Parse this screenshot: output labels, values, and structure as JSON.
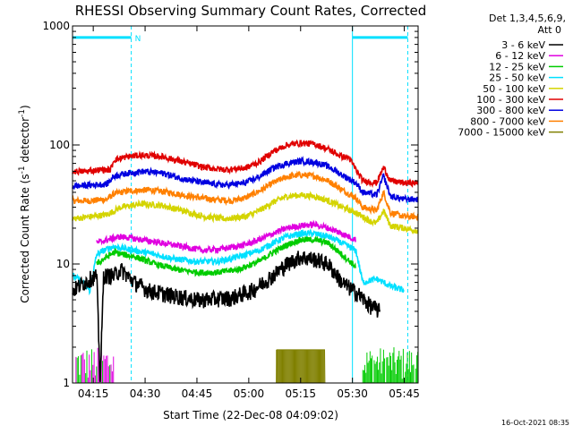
{
  "chart_data": {
    "type": "line",
    "title": "RHESSI Observing Summary Count Rates, Corrected",
    "xlabel": "Start Time (22-Dec-08 04:09:02)",
    "ylabel_main": "Corrected Count Rate (s",
    "ylabel_sup1": "-1",
    "ylabel_mid": " detector",
    "ylabel_sup2": "-1",
    "ylabel_end": ")",
    "yscale": "log",
    "ylim": [
      1,
      1000
    ],
    "xlim_minutes": [
      0,
      100
    ],
    "x_ticks": [
      {
        "label": "04:15",
        "minute": 6
      },
      {
        "label": "04:30",
        "minute": 21
      },
      {
        "label": "04:45",
        "minute": 36
      },
      {
        "label": "05:00",
        "minute": 51
      },
      {
        "label": "05:15",
        "minute": 66
      },
      {
        "label": "05:30",
        "minute": 81
      },
      {
        "label": "05:45",
        "minute": 96
      }
    ],
    "y_ticks": [
      {
        "label": "1",
        "value": 1
      },
      {
        "label": "10",
        "value": 10
      },
      {
        "label": "100",
        "value": 100
      },
      {
        "label": "1000",
        "value": 1000
      }
    ],
    "legend_header": [
      "Det 1,3,4,5,6,9,",
      "Att 0"
    ],
    "series": [
      {
        "name": "3 - 6 keV",
        "color": "#000000",
        "points": [
          [
            0,
            6
          ],
          [
            5,
            7.5
          ],
          [
            7,
            8
          ],
          [
            8,
            1
          ],
          [
            9,
            8
          ],
          [
            12,
            8
          ],
          [
            14,
            9
          ],
          [
            18,
            7
          ],
          [
            22,
            6
          ],
          [
            28,
            5.5
          ],
          [
            36,
            5
          ],
          [
            46,
            5.2
          ],
          [
            52,
            6
          ],
          [
            58,
            8
          ],
          [
            62,
            10
          ],
          [
            66,
            11.5
          ],
          [
            70,
            11
          ],
          [
            74,
            10
          ],
          [
            78,
            7
          ],
          [
            83,
            5.5
          ],
          [
            86,
            4.5
          ],
          [
            89,
            4
          ]
        ]
      },
      {
        "name": "6 - 12 keV",
        "color": "#e000e0",
        "points": [
          [
            7,
            15
          ],
          [
            10,
            16
          ],
          [
            14,
            17
          ],
          [
            20,
            16
          ],
          [
            26,
            15
          ],
          [
            32,
            14
          ],
          [
            38,
            13
          ],
          [
            44,
            13.5
          ],
          [
            50,
            14.5
          ],
          [
            54,
            16
          ],
          [
            58,
            18
          ],
          [
            62,
            20
          ],
          [
            66,
            21
          ],
          [
            70,
            21.5
          ],
          [
            74,
            20
          ],
          [
            78,
            18
          ],
          [
            82,
            16
          ]
        ]
      },
      {
        "name": "12 - 25 keV",
        "color": "#00cc00",
        "points": [
          [
            7,
            10
          ],
          [
            9,
            11
          ],
          [
            12,
            12.5
          ],
          [
            18,
            11.5
          ],
          [
            24,
            10
          ],
          [
            30,
            9
          ],
          [
            36,
            8.5
          ],
          [
            42,
            8.5
          ],
          [
            48,
            9
          ],
          [
            54,
            10.5
          ],
          [
            58,
            12.5
          ],
          [
            62,
            14.5
          ],
          [
            66,
            16
          ],
          [
            70,
            16
          ],
          [
            74,
            15
          ],
          [
            78,
            12
          ],
          [
            82,
            9.5
          ]
        ]
      },
      {
        "name": "25 - 50 keV",
        "color": "#00e0ff",
        "points": [
          [
            0,
            8
          ],
          [
            3,
            7
          ],
          [
            5,
            6
          ],
          [
            7,
            12
          ],
          [
            9,
            13
          ],
          [
            12,
            14
          ],
          [
            18,
            13
          ],
          [
            24,
            12
          ],
          [
            30,
            11
          ],
          [
            36,
            10.5
          ],
          [
            42,
            10.5
          ],
          [
            48,
            11.5
          ],
          [
            54,
            13
          ],
          [
            58,
            15
          ],
          [
            62,
            17
          ],
          [
            66,
            18
          ],
          [
            70,
            18
          ],
          [
            74,
            17
          ],
          [
            78,
            15
          ],
          [
            82,
            13
          ],
          [
            84,
            7
          ],
          [
            88,
            7.5
          ],
          [
            92,
            6.5
          ],
          [
            96,
            6
          ]
        ]
      },
      {
        "name": "50 - 100 keV",
        "color": "#d4d400",
        "points": [
          [
            0,
            24
          ],
          [
            5,
            25
          ],
          [
            10,
            26
          ],
          [
            14,
            30
          ],
          [
            20,
            32
          ],
          [
            26,
            31
          ],
          [
            32,
            28
          ],
          [
            38,
            25
          ],
          [
            44,
            24
          ],
          [
            50,
            25
          ],
          [
            54,
            28
          ],
          [
            58,
            33
          ],
          [
            62,
            37
          ],
          [
            66,
            38
          ],
          [
            70,
            37
          ],
          [
            74,
            34
          ],
          [
            78,
            30
          ],
          [
            82,
            27
          ],
          [
            86,
            23
          ],
          [
            88,
            22
          ],
          [
            90,
            28
          ],
          [
            92,
            21
          ],
          [
            96,
            20
          ],
          [
            100,
            19
          ]
        ]
      },
      {
        "name": "100 - 300 keV",
        "color": "#e00000",
        "points": [
          [
            0,
            60
          ],
          [
            4,
            60
          ],
          [
            8,
            62
          ],
          [
            11,
            62
          ],
          [
            12,
            75
          ],
          [
            16,
            80
          ],
          [
            20,
            82
          ],
          [
            26,
            80
          ],
          [
            32,
            72
          ],
          [
            38,
            65
          ],
          [
            44,
            62
          ],
          [
            50,
            64
          ],
          [
            54,
            72
          ],
          [
            58,
            88
          ],
          [
            62,
            100
          ],
          [
            66,
            104
          ],
          [
            70,
            102
          ],
          [
            74,
            92
          ],
          [
            78,
            80
          ],
          [
            80,
            78
          ],
          [
            82,
            62
          ],
          [
            84,
            50
          ],
          [
            88,
            48
          ],
          [
            90,
            65
          ],
          [
            92,
            50
          ],
          [
            96,
            48
          ],
          [
            100,
            48
          ]
        ]
      },
      {
        "name": "300 - 800 keV",
        "color": "#0000e0",
        "points": [
          [
            0,
            45
          ],
          [
            5,
            46
          ],
          [
            10,
            47
          ],
          [
            12,
            55
          ],
          [
            16,
            58
          ],
          [
            20,
            60
          ],
          [
            26,
            58
          ],
          [
            32,
            52
          ],
          [
            38,
            48
          ],
          [
            44,
            46
          ],
          [
            50,
            48
          ],
          [
            54,
            54
          ],
          [
            58,
            64
          ],
          [
            62,
            70
          ],
          [
            66,
            73
          ],
          [
            70,
            72
          ],
          [
            74,
            66
          ],
          [
            78,
            56
          ],
          [
            82,
            48
          ],
          [
            84,
            40
          ],
          [
            88,
            38
          ],
          [
            90,
            55
          ],
          [
            92,
            37
          ],
          [
            96,
            35
          ],
          [
            100,
            35
          ]
        ]
      },
      {
        "name": "800 - 7000 keV",
        "color": "#ff8000",
        "points": [
          [
            0,
            34
          ],
          [
            5,
            34
          ],
          [
            10,
            35
          ],
          [
            12,
            39
          ],
          [
            16,
            41
          ],
          [
            22,
            42
          ],
          [
            28,
            40
          ],
          [
            34,
            37
          ],
          [
            40,
            35
          ],
          [
            46,
            34
          ],
          [
            50,
            36
          ],
          [
            54,
            41
          ],
          [
            58,
            48
          ],
          [
            62,
            54
          ],
          [
            66,
            56
          ],
          [
            70,
            55
          ],
          [
            74,
            50
          ],
          [
            78,
            42
          ],
          [
            82,
            36
          ],
          [
            84,
            30
          ],
          [
            88,
            28
          ],
          [
            90,
            40
          ],
          [
            92,
            27
          ],
          [
            96,
            25
          ],
          [
            100,
            25
          ]
        ]
      },
      {
        "name": "7000 - 15000 keV",
        "color": "#808000",
        "points": [
          [
            17,
            1
          ],
          [
            36,
            1
          ],
          [
            56,
            1
          ],
          [
            59,
            1
          ],
          [
            59,
            1.9
          ],
          [
            66,
            1.9
          ],
          [
            73,
            1.9
          ],
          [
            73,
            1
          ],
          [
            100,
            1
          ]
        ]
      }
    ],
    "annotations": [
      {
        "text": "N"
      }
    ],
    "footer_timestamp": "16-Oct-2021 08:35"
  }
}
